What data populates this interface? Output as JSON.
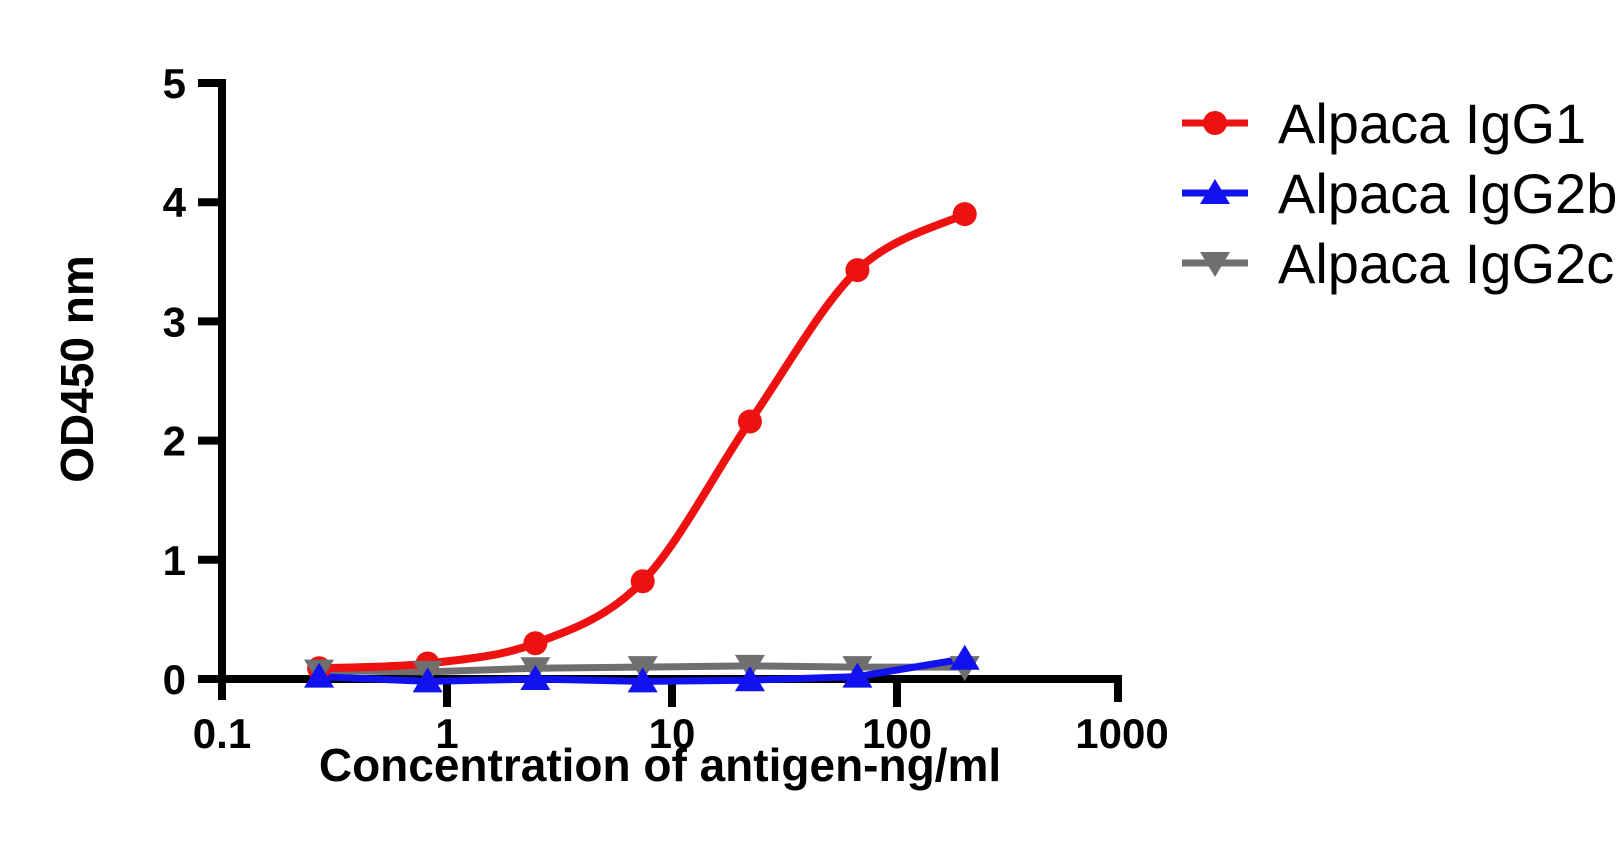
{
  "figure": {
    "background": "#ffffff",
    "axis_color": "#000000"
  },
  "chart_data": {
    "type": "line",
    "title": "",
    "xlabel": "Concentration of antigen-ng/ml",
    "ylabel": "OD450 nm",
    "x_scale": "log",
    "xlim": [
      0.1,
      1000
    ],
    "ylim": [
      0,
      5
    ],
    "x_tick_values": [
      0.1,
      1,
      10,
      100,
      1000
    ],
    "x_tick_labels": [
      "0.1",
      "1",
      "10",
      "100",
      "1000"
    ],
    "y_tick_values": [
      0,
      1,
      2,
      3,
      4,
      5
    ],
    "y_tick_labels": [
      "0",
      "1",
      "2",
      "3",
      "4",
      "5"
    ],
    "grid": false,
    "legend_position": "top-right",
    "x": [
      0.27,
      0.82,
      2.47,
      7.41,
      22.2,
      66.7,
      200
    ],
    "series": [
      {
        "name": "Alpaca IgG1",
        "color": "#ee1111",
        "marker": "circle",
        "smooth": true,
        "values": [
          0.09,
          0.13,
          0.3,
          0.82,
          2.16,
          3.43,
          3.9
        ]
      },
      {
        "name": "Alpaca IgG2b",
        "color": "#1212ee",
        "marker": "triangle-up",
        "smooth": false,
        "values": [
          0.02,
          -0.02,
          0.0,
          -0.02,
          -0.01,
          0.02,
          0.17
        ]
      },
      {
        "name": "Alpaca IgG2c",
        "color": "#6f6f6f",
        "marker": "triangle-down",
        "smooth": false,
        "values": [
          0.07,
          0.06,
          0.09,
          0.1,
          0.11,
          0.1,
          0.1
        ]
      }
    ]
  }
}
